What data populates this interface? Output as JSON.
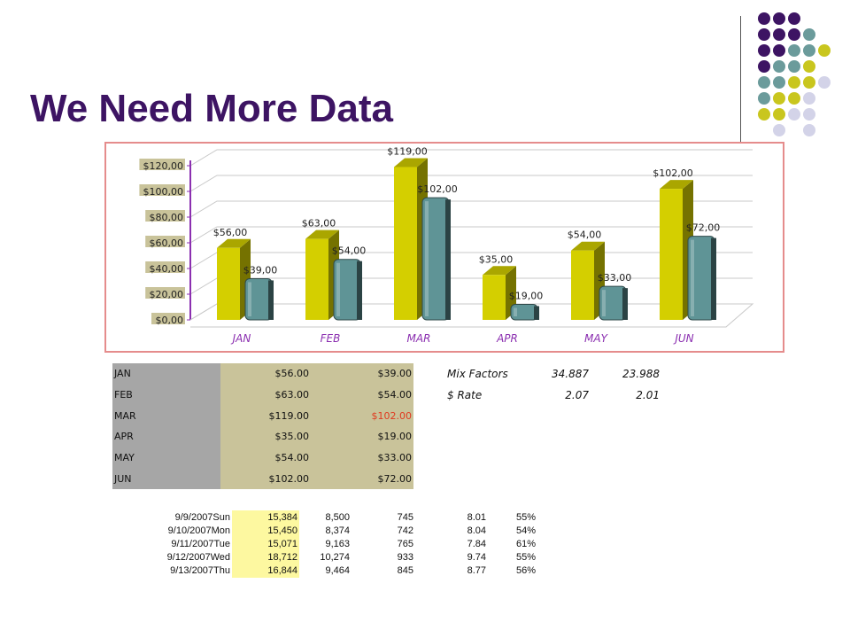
{
  "title": "We Need More Data",
  "colors": {
    "title": "#3d1463",
    "dot_purple": "#3d1463",
    "dot_teal": "#6b9b9b",
    "dot_yellow": "#c9c61e",
    "dot_lavender": "#d3d3e8",
    "bar_yellow": "#d4cf00",
    "bar_teal": "#5f9496"
  },
  "chart_data": {
    "type": "bar",
    "categories": [
      "JAN",
      "FEB",
      "MAR",
      "APR",
      "MAY",
      "JUN"
    ],
    "series": [
      {
        "values": [
          56,
          63,
          119,
          35,
          54,
          102
        ]
      },
      {
        "values": [
          39,
          54,
          102,
          19,
          33,
          72
        ]
      }
    ],
    "data_labels": [
      [
        "$56,00",
        "$63,00",
        "$119,00",
        "$35,00",
        "$54,00",
        "$102,00"
      ],
      [
        "$39,00",
        "$54,00",
        "$102,00",
        "$19,00",
        "$33,00",
        "$72,00"
      ]
    ],
    "y_ticks": [
      "$0,00",
      "$20,00",
      "$40,00",
      "$60,00",
      "$80,00",
      "$100,00",
      "$120,00"
    ],
    "ylim": [
      0,
      120
    ],
    "grid": true
  },
  "table1": {
    "rows": [
      {
        "month": "JAN",
        "v1": "$56.00",
        "v2": "$39.00"
      },
      {
        "month": "FEB",
        "v1": "$63.00",
        "v2": "$54.00"
      },
      {
        "month": "MAR",
        "v1": "$119.00",
        "v2": "$102.00"
      },
      {
        "month": "APR",
        "v1": "$35.00",
        "v2": "$19.00"
      },
      {
        "month": "MAY",
        "v1": "$54.00",
        "v2": "$33.00"
      },
      {
        "month": "JUN",
        "v1": "$102.00",
        "v2": "$72.00"
      }
    ]
  },
  "factors": {
    "mix_label": "Mix Factors",
    "mix_a": "34.887",
    "mix_b": "23.988",
    "rate_label": "$ Rate",
    "rate_a": "2.07",
    "rate_b": "2.01"
  },
  "table2": {
    "rows": [
      {
        "date": "9/9/2007Sun",
        "a": "15,384",
        "b": "8,500",
        "c": "745",
        "d": "8.01",
        "e": "55%"
      },
      {
        "date": "9/10/2007Mon",
        "a": "15,450",
        "b": "8,374",
        "c": "742",
        "d": "8.04",
        "e": "54%"
      },
      {
        "date": "9/11/2007Tue",
        "a": "15,071",
        "b": "9,163",
        "c": "765",
        "d": "7.84",
        "e": "61%"
      },
      {
        "date": "9/12/2007Wed",
        "a": "18,712",
        "b": "10,274",
        "c": "933",
        "d": "9.74",
        "e": "55%"
      },
      {
        "date": "9/13/2007Thu",
        "a": "16,844",
        "b": "9,464",
        "c": "845",
        "d": "8.77",
        "e": "56%"
      }
    ]
  }
}
